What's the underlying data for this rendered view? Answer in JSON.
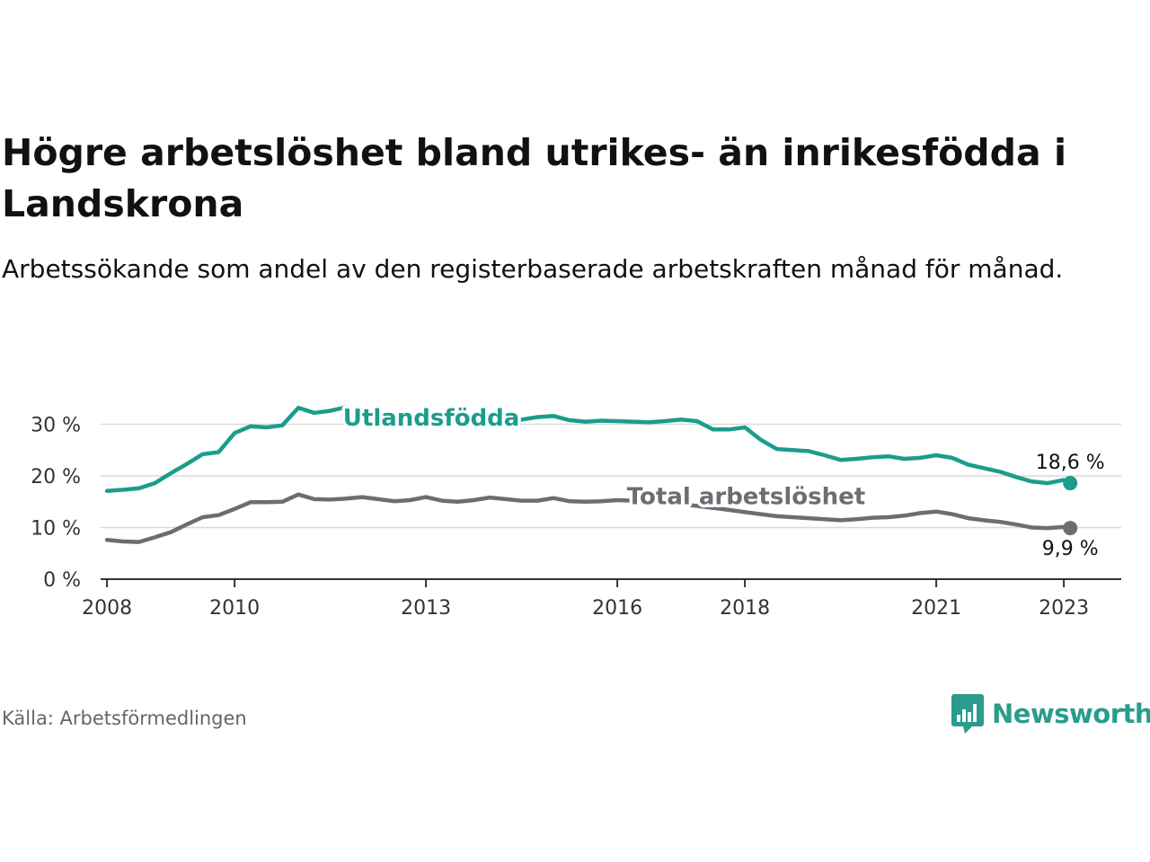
{
  "title": "Högre arbetslöshet bland utrikes- än inrikesfödda i Landskrona",
  "subtitle": "Arbetssökande som andel av den registerbaserade arbetskraften månad för månad.",
  "source": "Källa: Arbetsförmedlingen",
  "brand": {
    "name": "Newsworthy",
    "icon": "newsworthy-logo-icon",
    "color": "#2a9c8c"
  },
  "chart_data": {
    "type": "line",
    "title": "Högre arbetslöshet bland utrikes- än inrikesfödda i Landskrona",
    "xlabel": "",
    "ylabel": "",
    "ylim": [
      0,
      40
    ],
    "xlim": [
      2007.9,
      2023.9
    ],
    "yticks": [
      0,
      10,
      20,
      30
    ],
    "yticklabels": [
      "0 %",
      "10 %",
      "20 %",
      "30 %"
    ],
    "xticks": [
      2008,
      2010,
      2013,
      2016,
      2018,
      2021,
      2023
    ],
    "xticklabels": [
      "2008",
      "2010",
      "2013",
      "2016",
      "2018",
      "2021",
      "2023"
    ],
    "grid": true,
    "series": [
      {
        "name": "Utlandsfödda",
        "color": "#1a9d8c",
        "end_label": "18,6 %",
        "x": [
          2008.0,
          2008.25,
          2008.5,
          2008.75,
          2009.0,
          2009.25,
          2009.5,
          2009.75,
          2010.0,
          2010.25,
          2010.5,
          2010.75,
          2011.0,
          2011.25,
          2011.5,
          2011.75,
          2012.0,
          2012.25,
          2012.5,
          2012.75,
          2013.0,
          2013.25,
          2013.5,
          2013.75,
          2014.0,
          2014.25,
          2014.5,
          2014.75,
          2015.0,
          2015.25,
          2015.5,
          2015.75,
          2016.0,
          2016.25,
          2016.5,
          2016.75,
          2017.0,
          2017.25,
          2017.5,
          2017.75,
          2018.0,
          2018.25,
          2018.5,
          2018.75,
          2019.0,
          2019.25,
          2019.5,
          2019.75,
          2020.0,
          2020.25,
          2020.5,
          2020.75,
          2021.0,
          2021.25,
          2021.5,
          2021.75,
          2022.0,
          2022.25,
          2022.5,
          2022.75,
          2023.0,
          2023.1
        ],
        "values": [
          17.1,
          17.3,
          17.6,
          18.6,
          20.5,
          22.3,
          24.2,
          24.6,
          28.3,
          29.6,
          29.4,
          29.8,
          33.2,
          32.2,
          32.6,
          33.3,
          31.5,
          31.2,
          30.8,
          30.5,
          30.4,
          30.0,
          30.3,
          30.5,
          30.8,
          30.6,
          30.9,
          31.4,
          31.6,
          30.8,
          30.5,
          30.7,
          30.6,
          30.5,
          30.4,
          30.6,
          30.9,
          30.6,
          29.0,
          29.0,
          29.4,
          27.0,
          25.2,
          25.0,
          24.8,
          24.0,
          23.1,
          23.3,
          23.6,
          23.8,
          23.3,
          23.5,
          24.0,
          23.5,
          22.2,
          21.5,
          20.8,
          19.8,
          18.9,
          18.6,
          19.2,
          18.6
        ]
      },
      {
        "name": "Total arbetslöshet",
        "color": "#6d6c72",
        "end_label": "9,9 %",
        "x": [
          2008.0,
          2008.25,
          2008.5,
          2008.75,
          2009.0,
          2009.25,
          2009.5,
          2009.75,
          2010.0,
          2010.25,
          2010.5,
          2010.75,
          2011.0,
          2011.25,
          2011.5,
          2011.75,
          2012.0,
          2012.25,
          2012.5,
          2012.75,
          2013.0,
          2013.25,
          2013.5,
          2013.75,
          2014.0,
          2014.25,
          2014.5,
          2014.75,
          2015.0,
          2015.25,
          2015.5,
          2015.75,
          2016.0,
          2016.25,
          2016.5,
          2016.75,
          2017.0,
          2017.25,
          2017.5,
          2017.75,
          2018.0,
          2018.25,
          2018.5,
          2018.75,
          2019.0,
          2019.25,
          2019.5,
          2019.75,
          2020.0,
          2020.25,
          2020.5,
          2020.75,
          2021.0,
          2021.25,
          2021.5,
          2021.75,
          2022.0,
          2022.25,
          2022.5,
          2022.75,
          2023.0,
          2023.1
        ],
        "values": [
          7.6,
          7.3,
          7.2,
          8.1,
          9.1,
          10.6,
          12.0,
          12.4,
          13.6,
          14.9,
          14.9,
          15.0,
          16.4,
          15.5,
          15.4,
          15.6,
          15.9,
          15.5,
          15.1,
          15.3,
          15.9,
          15.2,
          15.0,
          15.3,
          15.8,
          15.5,
          15.2,
          15.2,
          15.7,
          15.1,
          15.0,
          15.1,
          15.3,
          15.2,
          15.0,
          14.8,
          14.5,
          14.2,
          13.8,
          13.4,
          13.0,
          12.6,
          12.2,
          12.0,
          11.8,
          11.6,
          11.4,
          11.6,
          11.9,
          12.0,
          12.3,
          12.8,
          13.1,
          12.6,
          11.8,
          11.4,
          11.1,
          10.6,
          10.0,
          9.9,
          10.1,
          9.9
        ]
      }
    ]
  }
}
